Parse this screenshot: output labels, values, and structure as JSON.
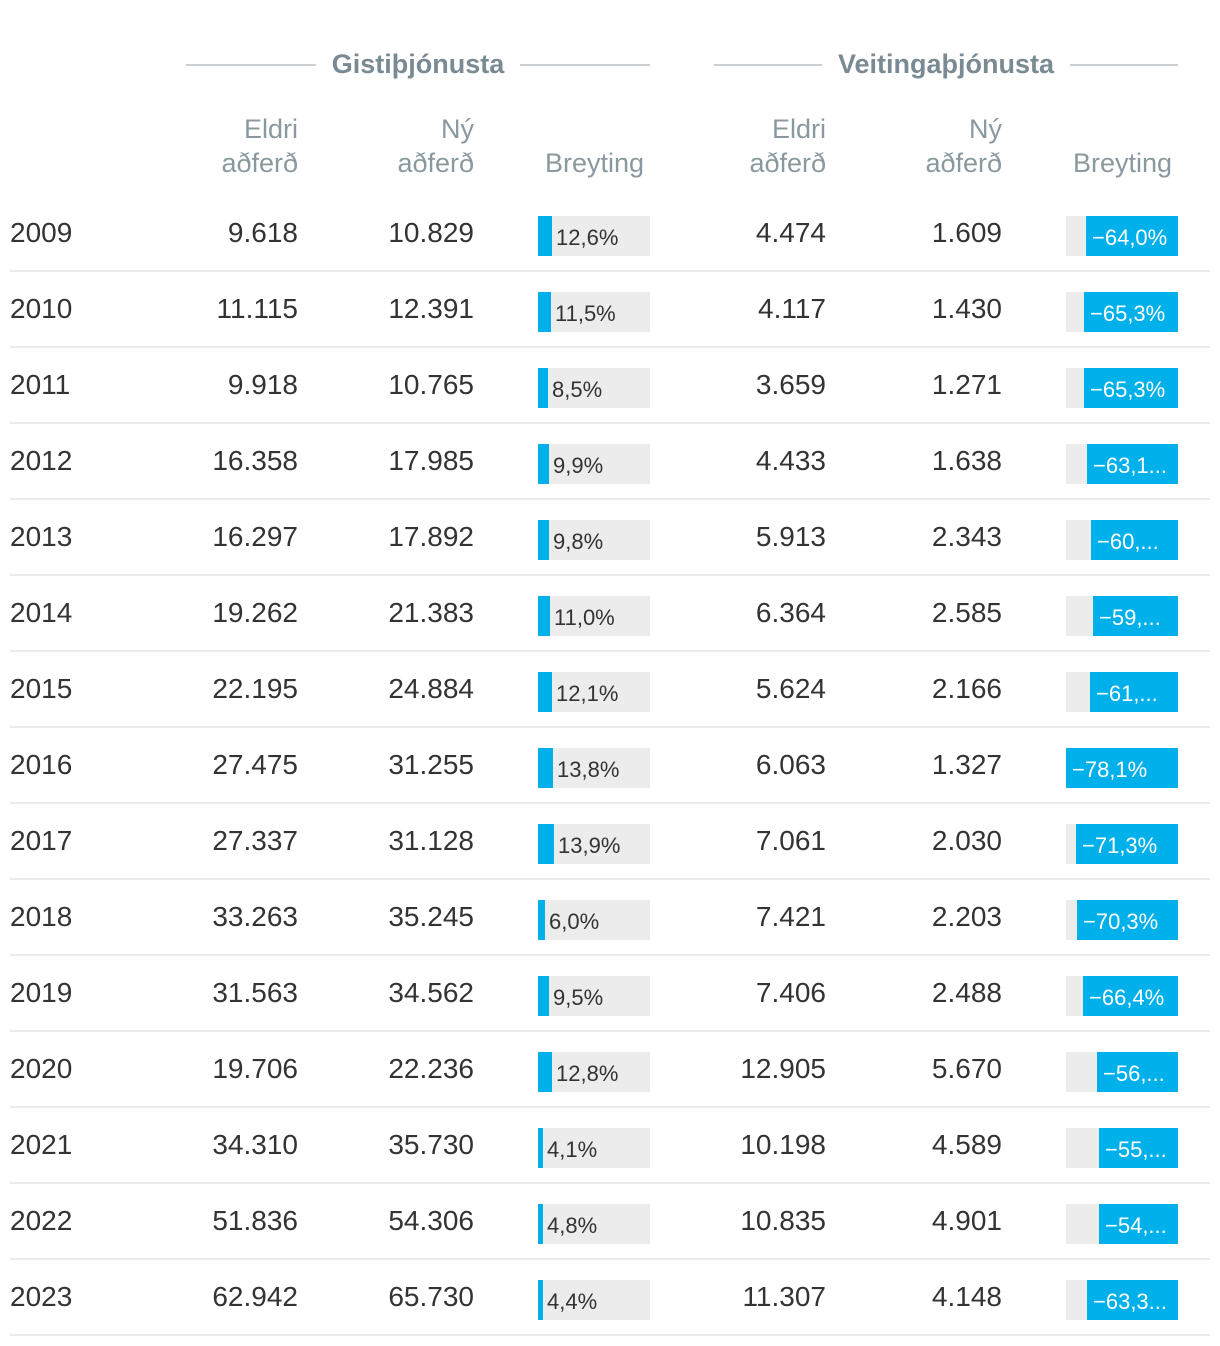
{
  "chart_data": {
    "type": "table",
    "groups": [
      {
        "title": "Gistiþjónusta",
        "columns": [
          "Eldri aðferð",
          "Ný aðferð",
          "Breyting"
        ]
      },
      {
        "title": "Veitingaþjónusta",
        "columns": [
          "Eldri aðferð",
          "Ný aðferð",
          "Breyting"
        ]
      }
    ],
    "headers": {
      "old_line1": "Eldri",
      "old_line2": "aðferð",
      "new_line1": "Ný",
      "new_line2": "aðferð",
      "change": "Breyting"
    },
    "bar_colors": {
      "fill": "#00b0ea",
      "track": "#ececec"
    },
    "rows": [
      {
        "year": "2009",
        "g_old": "9.618",
        "g_new": "10.829",
        "g_change": 12.6,
        "g_label": "12,6%",
        "v_old": "4.474",
        "v_new": "1.609",
        "v_change": -64.0,
        "v_label": "−64,0%"
      },
      {
        "year": "2010",
        "g_old": "11.115",
        "g_new": "12.391",
        "g_change": 11.5,
        "g_label": "11,5%",
        "v_old": "4.117",
        "v_new": "1.430",
        "v_change": -65.3,
        "v_label": "−65,3%"
      },
      {
        "year": "2011",
        "g_old": "9.918",
        "g_new": "10.765",
        "g_change": 8.5,
        "g_label": "8,5%",
        "v_old": "3.659",
        "v_new": "1.271",
        "v_change": -65.3,
        "v_label": "−65,3%"
      },
      {
        "year": "2012",
        "g_old": "16.358",
        "g_new": "17.985",
        "g_change": 9.9,
        "g_label": "9,9%",
        "v_old": "4.433",
        "v_new": "1.638",
        "v_change": -63.1,
        "v_label": "−63,1..."
      },
      {
        "year": "2013",
        "g_old": "16.297",
        "g_new": "17.892",
        "g_change": 9.8,
        "g_label": "9,8%",
        "v_old": "5.913",
        "v_new": "2.343",
        "v_change": -60.4,
        "v_label": "−60,..."
      },
      {
        "year": "2014",
        "g_old": "19.262",
        "g_new": "21.383",
        "g_change": 11.0,
        "g_label": "11,0%",
        "v_old": "6.364",
        "v_new": "2.585",
        "v_change": -59.4,
        "v_label": "−59,..."
      },
      {
        "year": "2015",
        "g_old": "22.195",
        "g_new": "24.884",
        "g_change": 12.1,
        "g_label": "12,1%",
        "v_old": "5.624",
        "v_new": "2.166",
        "v_change": -61.5,
        "v_label": "−61,..."
      },
      {
        "year": "2016",
        "g_old": "27.475",
        "g_new": "31.255",
        "g_change": 13.8,
        "g_label": "13,8%",
        "v_old": "6.063",
        "v_new": "1.327",
        "v_change": -78.1,
        "v_label": "−78,1%"
      },
      {
        "year": "2017",
        "g_old": "27.337",
        "g_new": "31.128",
        "g_change": 13.9,
        "g_label": "13,9%",
        "v_old": "7.061",
        "v_new": "2.030",
        "v_change": -71.3,
        "v_label": "−71,3%"
      },
      {
        "year": "2018",
        "g_old": "33.263",
        "g_new": "35.245",
        "g_change": 6.0,
        "g_label": "6,0%",
        "v_old": "7.421",
        "v_new": "2.203",
        "v_change": -70.3,
        "v_label": "−70,3%"
      },
      {
        "year": "2019",
        "g_old": "31.563",
        "g_new": "34.562",
        "g_change": 9.5,
        "g_label": "9,5%",
        "v_old": "7.406",
        "v_new": "2.488",
        "v_change": -66.4,
        "v_label": "−66,4%"
      },
      {
        "year": "2020",
        "g_old": "19.706",
        "g_new": "22.236",
        "g_change": 12.8,
        "g_label": "12,8%",
        "v_old": "12.905",
        "v_new": "5.670",
        "v_change": -56.1,
        "v_label": "−56,..."
      },
      {
        "year": "2021",
        "g_old": "34.310",
        "g_new": "35.730",
        "g_change": 4.1,
        "g_label": "4,1%",
        "v_old": "10.198",
        "v_new": "4.589",
        "v_change": -55.0,
        "v_label": "−55,..."
      },
      {
        "year": "2022",
        "g_old": "51.836",
        "g_new": "54.306",
        "g_change": 4.8,
        "g_label": "4,8%",
        "v_old": "10.835",
        "v_new": "4.901",
        "v_change": -54.8,
        "v_label": "−54,..."
      },
      {
        "year": "2023",
        "g_old": "62.942",
        "g_new": "65.730",
        "g_change": 4.4,
        "g_label": "4,4%",
        "v_old": "11.307",
        "v_new": "4.148",
        "v_change": -63.3,
        "v_label": "−63,3..."
      }
    ]
  }
}
